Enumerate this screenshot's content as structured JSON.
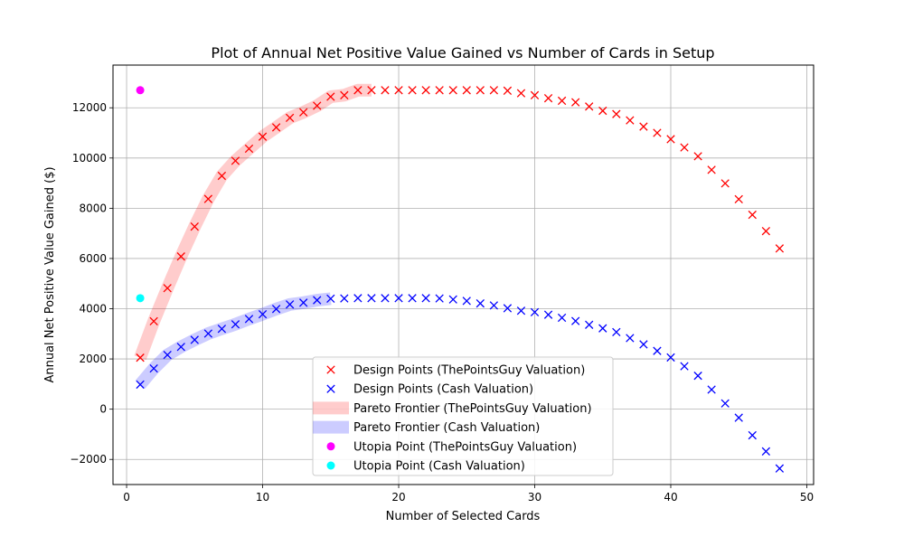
{
  "chart_data": {
    "type": "scatter",
    "title": "Plot of Annual Net Positive Value Gained vs Number of Cards in Setup",
    "xlabel": "Number of Selected Cards",
    "ylabel": "Annual Net Positive Value Gained ($)",
    "xlim": [
      -1,
      50.5
    ],
    "ylim": [
      -3000,
      13700
    ],
    "xticks": [
      0,
      10,
      20,
      30,
      40,
      50
    ],
    "yticks": [
      -2000,
      0,
      2000,
      4000,
      6000,
      8000,
      10000,
      12000
    ],
    "grid": true,
    "legend_position": "bottom-center",
    "series": [
      {
        "name": "Design Points (ThePointsGuy Valuation)",
        "marker": "x",
        "color": "#ff0000",
        "x": [
          1,
          2,
          3,
          4,
          5,
          6,
          7,
          8,
          9,
          10,
          11,
          12,
          13,
          14,
          15,
          16,
          17,
          18,
          19,
          20,
          21,
          22,
          23,
          24,
          25,
          26,
          27,
          28,
          29,
          30,
          31,
          32,
          33,
          34,
          35,
          36,
          37,
          38,
          39,
          40,
          41,
          42,
          43,
          44,
          45,
          46,
          47,
          48
        ],
        "y": [
          2050,
          3500,
          4820,
          6080,
          7270,
          8370,
          9290,
          9890,
          10370,
          10850,
          11220,
          11600,
          11820,
          12080,
          12440,
          12500,
          12700,
          12700,
          12700,
          12700,
          12700,
          12700,
          12700,
          12700,
          12700,
          12700,
          12700,
          12680,
          12580,
          12500,
          12380,
          12280,
          12220,
          12050,
          11880,
          11750,
          11500,
          11250,
          11000,
          10750,
          10420,
          10070,
          9530,
          8990,
          8360,
          7740,
          7090,
          6400
        ]
      },
      {
        "name": "Design Points (Cash Valuation)",
        "marker": "x",
        "color": "#0000ff",
        "x": [
          1,
          2,
          3,
          4,
          5,
          6,
          7,
          8,
          9,
          10,
          11,
          12,
          13,
          14,
          15,
          16,
          17,
          18,
          19,
          20,
          21,
          22,
          23,
          24,
          25,
          26,
          27,
          28,
          29,
          30,
          31,
          32,
          33,
          34,
          35,
          36,
          37,
          38,
          39,
          40,
          41,
          42,
          43,
          44,
          45,
          46,
          47,
          48
        ],
        "y": [
          980,
          1620,
          2160,
          2480,
          2760,
          3010,
          3200,
          3380,
          3590,
          3780,
          3990,
          4170,
          4240,
          4340,
          4400,
          4410,
          4420,
          4420,
          4420,
          4420,
          4420,
          4420,
          4410,
          4370,
          4310,
          4210,
          4130,
          4020,
          3920,
          3860,
          3760,
          3640,
          3510,
          3360,
          3220,
          3070,
          2830,
          2580,
          2320,
          2060,
          1710,
          1330,
          780,
          230,
          -340,
          -1040,
          -1680,
          -2360
        ]
      },
      {
        "name": "Pareto Frontier (ThePointsGuy Valuation)",
        "type": "line",
        "color": "#ff0000",
        "x": [
          1,
          2,
          3,
          4,
          5,
          6,
          7,
          8,
          9,
          10,
          11,
          12,
          13,
          14,
          15,
          16,
          17,
          18
        ],
        "y": [
          2050,
          3500,
          4820,
          6080,
          7270,
          8370,
          9290,
          9890,
          10370,
          10850,
          11220,
          11600,
          11820,
          12080,
          12440,
          12500,
          12700,
          12700
        ]
      },
      {
        "name": "Pareto Frontier (Cash Valuation)",
        "type": "line",
        "color": "#0000ff",
        "x": [
          1,
          2,
          3,
          4,
          5,
          6,
          7,
          8,
          9,
          10,
          11,
          12,
          13,
          14,
          15
        ],
        "y": [
          980,
          1620,
          2160,
          2480,
          2760,
          3010,
          3200,
          3380,
          3590,
          3780,
          3990,
          4170,
          4240,
          4340,
          4400
        ]
      },
      {
        "name": "Utopia Point (ThePointsGuy Valuation)",
        "marker": "o",
        "color": "#ff00ff",
        "x": [
          1
        ],
        "y": [
          12700
        ]
      },
      {
        "name": "Utopia Point (Cash Valuation)",
        "marker": "o",
        "color": "#00ffff",
        "x": [
          1
        ],
        "y": [
          4420
        ]
      }
    ]
  }
}
